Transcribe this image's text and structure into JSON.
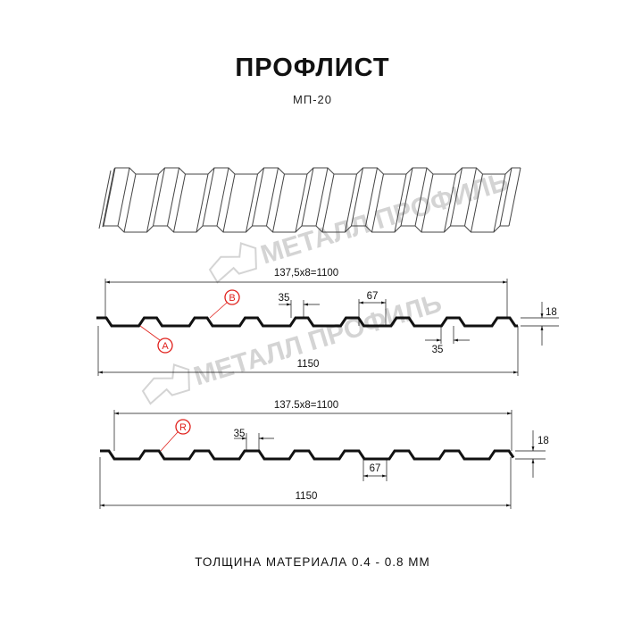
{
  "header": {
    "title": "ПРОФЛИСТ",
    "subtitle": "МП-20"
  },
  "watermark": {
    "text": "МЕТАЛЛ ПРОФИЛЬ",
    "color": "#dcdcdc"
  },
  "profile_1": {
    "overall_pitch_label": "137,5x8=1100",
    "total_width_label": "1150",
    "top_width_label": "35",
    "bottom_width_label": "35",
    "trough_width_label": "67",
    "height_label": "18",
    "callouts": [
      "B",
      "A"
    ]
  },
  "profile_2": {
    "overall_pitch_label": "137.5x8=1100",
    "total_width_label": "1150",
    "top_width_label": "35",
    "trough_width_label": "67",
    "height_label": "18",
    "callouts": [
      "R"
    ]
  },
  "footer": {
    "thickness": "ТОЛЩИНА МАТЕРИАЛА 0.4 - 0.8 ММ"
  },
  "colors": {
    "line": "#111111",
    "callout": "#e0201b",
    "watermark": "#dcdcdc"
  }
}
